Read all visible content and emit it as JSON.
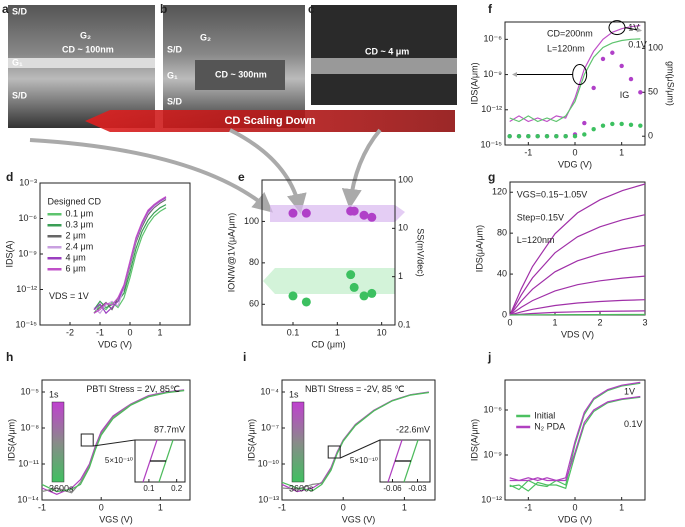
{
  "panel_labels": [
    "a",
    "b",
    "c",
    "d",
    "e",
    "f",
    "g",
    "h",
    "i",
    "j"
  ],
  "images": [
    {
      "texts": [
        "S/D",
        "G₂",
        "G₁",
        "CD ~ 100nm",
        "S/D"
      ]
    },
    {
      "texts": [
        "S/D",
        "G₂",
        "G₁",
        "CD ~ 300nm",
        "S/D"
      ]
    },
    {
      "texts": [
        "CD ~ 4 μm"
      ]
    }
  ],
  "banner": "CD Scaling Down",
  "chart_data": [
    {
      "type": "line",
      "xlabel": "VDG (V)",
      "ylabel": "IDS(A)",
      "ylog": true,
      "xlim": [
        -3,
        2
      ],
      "xticks": [
        -2,
        -1,
        0,
        1
      ],
      "ylim": [
        1e-15,
        0.001
      ],
      "yticks": [
        {
          "value": 1e-15,
          "label": "10⁻¹⁵"
        },
        {
          "value": 1e-12,
          "label": "10⁻¹²"
        },
        {
          "value": 1e-09,
          "label": "10⁻⁹"
        },
        {
          "value": 1e-06,
          "label": "10⁻⁶"
        },
        {
          "value": 0.001,
          "label": "10⁻³"
        }
      ],
      "legend_title": "Designed CD",
      "annotations": [
        "VDS = 1V"
      ],
      "x": [
        -1.2,
        -1,
        -0.8,
        -0.6,
        -0.4,
        -0.2,
        0,
        0.2,
        0.4,
        0.6,
        0.8,
        1.0,
        1.2
      ],
      "series": [
        {
          "name": "0.1 μm",
          "color": "#5ec46e",
          "values": [
            1e-14,
            5e-14,
            2e-14,
            8e-14,
            3e-14,
            2e-13,
            1e-11,
            1e-09,
            3e-08,
            3e-07,
            1.5e-06,
            4e-06,
            8e-06
          ]
        },
        {
          "name": "0.3 μm",
          "color": "#3a9e55",
          "values": [
            2e-14,
            1e-13,
            3e-14,
            5e-14,
            1e-13,
            5e-13,
            3e-11,
            3e-09,
            8e-08,
            7e-07,
            3e-06,
            8e-06,
            1.5e-05
          ]
        },
        {
          "name": "2 μm",
          "color": "#666666",
          "values": [
            1e-14,
            3e-14,
            8e-14,
            2e-14,
            2e-13,
            1e-12,
            1e-10,
            1e-08,
            2e-07,
            2e-06,
            8e-06,
            2e-05,
            4e-05
          ]
        },
        {
          "name": "2.4 μm",
          "color": "#c9a0e0",
          "values": [
            3e-14,
            1e-14,
            5e-14,
            1e-13,
            4e-14,
            1.5e-12,
            1.5e-10,
            1.5e-08,
            3e-07,
            3e-06,
            1e-05,
            2.5e-05,
            5e-05
          ]
        },
        {
          "name": "4 μm",
          "color": "#9b3fc0",
          "values": [
            2e-14,
            6e-14,
            1e-14,
            3e-14,
            1e-13,
            2e-12,
            2e-10,
            2e-08,
            4e-07,
            4e-06,
            1.3e-05,
            3e-05,
            6e-05
          ]
        },
        {
          "name": "6 μm",
          "color": "#c050c8",
          "values": [
            1e-14,
            2e-14,
            7e-14,
            5e-14,
            2e-13,
            2.5e-12,
            2.5e-10,
            2.5e-08,
            5e-07,
            5e-06,
            1.5e-05,
            3.5e-05,
            7e-05
          ]
        }
      ]
    },
    {
      "type": "scatter",
      "xlabel": "CD (μm)",
      "ylabel": "ION/W@1V(μA/μm)",
      "y2label": "SS(mV/dec)",
      "xlog": true,
      "y2log": true,
      "xlim": [
        0.02,
        20
      ],
      "xticks": [
        0.1,
        1,
        10
      ],
      "ylim": [
        50,
        120
      ],
      "yticks": [
        60,
        80,
        100
      ],
      "y2lim": [
        0.1,
        100
      ],
      "y2ticks": [
        0.1,
        1,
        10,
        100
      ],
      "x": [
        0.1,
        0.2,
        2,
        2.4,
        4,
        6
      ],
      "series": [
        {
          "color": "#b040c8",
          "values": [
            104,
            104,
            105,
            105,
            103,
            102
          ]
        },
        {
          "color": "#3cc060",
          "axis": "y2",
          "values": [
            0.4,
            0.3,
            1.1,
            0.6,
            0.4,
            0.45
          ]
        }
      ]
    },
    {
      "type": "line",
      "xlabel": "VDG (V)",
      "ylabel": "IDS(A/μm)",
      "y2label": "gm(μS/μm)",
      "ylog": true,
      "xlim": [
        -1.5,
        1.5
      ],
      "xticks": [
        -1,
        0,
        1
      ],
      "ylim": [
        1e-15,
        3e-05
      ],
      "yticks": [
        {
          "value": 1e-15,
          "label": "10⁻¹⁵"
        },
        {
          "value": 1e-12,
          "label": "10⁻¹²"
        },
        {
          "value": 1e-09,
          "label": "10⁻⁹"
        },
        {
          "value": 1e-06,
          "label": "10⁻⁶"
        }
      ],
      "y2lim": [
        -10,
        130
      ],
      "y2ticks": [
        0,
        50,
        100
      ],
      "annotations": [
        "CD=200nm",
        "L=120nm",
        "1V",
        "0.1V",
        "IG"
      ],
      "x": [
        -1.4,
        -1.2,
        -1,
        -0.8,
        -0.6,
        -0.4,
        -0.2,
        0,
        0.2,
        0.4,
        0.6,
        0.8,
        1,
        1.2,
        1.4
      ],
      "series": [
        {
          "color": "#c050c8",
          "values": [
            1e-13,
            3e-13,
            1e-13,
            2e-13,
            1e-13,
            3e-13,
            2e-13,
            1e-11,
            3e-09,
            1e-07,
            1e-06,
            4e-06,
            8e-06,
            1.2e-05,
            1.5e-05
          ]
        },
        {
          "color": "#5ec46e",
          "values": [
            2e-13,
            1e-13,
            3e-13,
            1e-13,
            2e-13,
            1e-13,
            3e-13,
            5e-12,
            1e-09,
            3e-08,
            2e-07,
            5e-07,
            8e-07,
            1e-06,
            1.1e-06
          ]
        },
        {
          "color": "#b040c8",
          "axis": "y2",
          "markers": true,
          "values": [
            0,
            0,
            0,
            0,
            0,
            0,
            0,
            2,
            15,
            55,
            88,
            95,
            80,
            65,
            50
          ]
        },
        {
          "color": "#3cc060",
          "axis": "y2",
          "markers": true,
          "values": [
            0,
            0,
            0,
            0,
            0,
            0,
            0,
            0,
            2,
            8,
            12,
            14,
            14,
            13,
            12
          ]
        }
      ]
    },
    {
      "type": "line",
      "xlabel": "VDS (V)",
      "ylabel": "IDS(μA/μm)",
      "xlim": [
        0,
        3
      ],
      "xticks": [
        0,
        1,
        2,
        3
      ],
      "ylim": [
        0,
        130
      ],
      "yticks": [
        0,
        40,
        80,
        120
      ],
      "annotations": [
        "VGS=0.15~1.05V",
        "Step=0.15V",
        "L=120nm"
      ],
      "x": [
        0,
        0.25,
        0.5,
        1,
        1.5,
        2,
        2.5,
        3
      ],
      "series": [
        {
          "color": "#a030a8",
          "values": [
            0,
            25.6,
            47.4,
            79.4,
            99.8,
            112.6,
            121.6,
            128
          ]
        },
        {
          "color": "#a030a8",
          "values": [
            0,
            19.6,
            36.3,
            60.8,
            76.4,
            86.2,
            93.1,
            98
          ]
        },
        {
          "color": "#a030a8",
          "values": [
            0,
            13.6,
            25.2,
            42.2,
            53,
            59.8,
            64.6,
            68
          ]
        },
        {
          "color": "#a030a8",
          "values": [
            0,
            7.6,
            14.1,
            23.6,
            29.6,
            33.4,
            36.1,
            38
          ]
        },
        {
          "color": "#a030a8",
          "values": [
            0,
            3,
            5.6,
            9.3,
            11.7,
            13.2,
            14.3,
            15
          ]
        },
        {
          "color": "#a030a8",
          "values": [
            0,
            0.8,
            1.5,
            2.5,
            3.1,
            3.5,
            3.8,
            4
          ]
        },
        {
          "color": "#4cbb5c",
          "values": [
            0,
            0.1,
            0.2,
            0.3,
            0.4,
            0.4,
            0.5,
            0.5
          ]
        }
      ]
    },
    {
      "type": "line",
      "xlabel": "VGS (V)",
      "ylabel": "IDS(A/μm)",
      "ylog": true,
      "xlim": [
        -1,
        1.5
      ],
      "xticks": [
        -1,
        0,
        1
      ],
      "ylim": [
        1e-14,
        0.0001
      ],
      "yticks": [
        {
          "value": 1e-14,
          "label": "10⁻¹⁴"
        },
        {
          "value": 1e-11,
          "label": "10⁻¹¹"
        },
        {
          "value": 1e-08,
          "label": "10⁻⁸"
        },
        {
          "value": 1e-05,
          "label": "10⁻⁵"
        }
      ],
      "annotations": [
        "PBTI Stress = 2V, 85℃"
      ],
      "colorbar": [
        "1s",
        "3600s"
      ],
      "inset": {
        "xlim": [
          0.05,
          0.23
        ],
        "xticks": [
          0.1,
          0.2
        ],
        "label": "87.7mV",
        "scale": "5×10⁻¹⁰"
      },
      "x": [
        -1,
        -0.75,
        -0.5,
        -0.35,
        -0.2,
        -0.1,
        0,
        0.2,
        0.5,
        0.8,
        1.1,
        1.4
      ],
      "series": [
        {
          "color": "#b040c0",
          "values": [
            1e-13,
            3e-14,
            1e-13,
            5e-13,
            1e-11,
            3e-10,
            5e-09,
            1e-07,
            1e-06,
            5e-06,
            1e-05,
            1.5e-05
          ]
        },
        {
          "color": "#888888",
          "values": [
            5e-14,
            1e-13,
            4e-14,
            3e-13,
            7e-12,
            2e-10,
            3.5e-09,
            8e-08,
            9e-07,
            4.5e-06,
            9e-06,
            1.4e-05
          ]
        },
        {
          "color": "#4cbb5c",
          "values": [
            2e-13,
            5e-14,
            8e-14,
            2e-13,
            5e-12,
            1.5e-10,
            2.5e-09,
            6e-08,
            8e-07,
            4e-06,
            8.5e-06,
            1.3e-05
          ]
        }
      ]
    },
    {
      "type": "line",
      "xlabel": "VGS (V)",
      "ylabel": "IDS(A/μm)",
      "ylog": true,
      "xlim": [
        -1,
        1.5
      ],
      "xticks": [
        -1,
        0,
        1
      ],
      "ylim": [
        1e-13,
        0.001
      ],
      "yticks": [
        {
          "value": 1e-13,
          "label": "10⁻¹³"
        },
        {
          "value": 1e-10,
          "label": "10⁻¹⁰"
        },
        {
          "value": 1e-07,
          "label": "10⁻⁷"
        },
        {
          "value": 0.0001,
          "label": "10⁻⁴"
        }
      ],
      "annotations": [
        "NBTI Stress = -2V, 85 ℃"
      ],
      "colorbar": [
        "1s",
        "3600s"
      ],
      "inset": {
        "xlim": [
          -0.075,
          -0.015
        ],
        "xticks": [
          -0.06,
          -0.03
        ],
        "label": "-22.6mV",
        "scale": "5×10⁻¹⁰"
      },
      "x": [
        -1,
        -0.75,
        -0.5,
        -0.35,
        -0.2,
        -0.1,
        0,
        0.2,
        0.5,
        0.8,
        1.1,
        1.4
      ],
      "series": [
        {
          "color": "#b040c0",
          "values": [
            2e-12,
            5e-13,
            1e-12,
            3e-12,
            5e-11,
            1e-09,
            1e-08,
            2e-07,
            3e-06,
            2e-05,
            6e-05,
            0.0001
          ]
        },
        {
          "color": "#888888",
          "values": [
            1e-12,
            8e-13,
            2e-12,
            2.5e-12,
            4e-11,
            8e-10,
            9e-09,
            1.8e-07,
            2.8e-06,
            1.9e-05,
            5.8e-05,
            9.5e-05
          ]
        },
        {
          "color": "#4cbb5c",
          "values": [
            3e-12,
            1e-12,
            6e-13,
            2e-12,
            3e-11,
            7e-10,
            8e-09,
            1.6e-07,
            2.6e-06,
            1.8e-05,
            5.5e-05,
            9e-05
          ]
        }
      ]
    },
    {
      "type": "line",
      "xlabel": "VDG (V)",
      "ylabel": "IDS(A/μm)",
      "ylog": true,
      "xlim": [
        -1.5,
        1.5
      ],
      "xticks": [
        -1,
        0,
        1
      ],
      "ylim": [
        1e-12,
        0.0001
      ],
      "yticks": [
        {
          "value": 1e-12,
          "label": "10⁻¹²"
        },
        {
          "value": 1e-09,
          "label": "10⁻⁹"
        },
        {
          "value": 1e-06,
          "label": "10⁻⁶"
        }
      ],
      "annotations": [
        "1V",
        "0.1V"
      ],
      "x": [
        -1.4,
        -1.2,
        -1,
        -0.8,
        -0.6,
        -0.4,
        -0.2,
        0,
        0.2,
        0.4,
        0.7,
        1,
        1.4
      ],
      "series": [
        {
          "name": "Initial",
          "color": "#4cc060",
          "values": [
            1e-11,
            5e-12,
            2e-11,
            1e-11,
            8e-12,
            2e-11,
            1e-11,
            5e-09,
            5e-07,
            5e-06,
            2e-05,
            4e-05,
            6e-05
          ]
        },
        {
          "name": "N₂ PDA",
          "color": "#b040c0",
          "values": [
            3e-11,
            2e-11,
            3e-11,
            2e-11,
            3e-11,
            2e-11,
            3e-11,
            8e-09,
            7e-07,
            6e-06,
            2.3e-05,
            4.5e-05,
            7e-05
          ]
        },
        {
          "color": "#4cc060",
          "values": [
            8e-12,
            1e-11,
            4e-12,
            1.5e-11,
            1e-11,
            1e-11,
            6e-12,
            1e-09,
            1e-07,
            8e-07,
            3e-06,
            5e-06,
            7e-06
          ]
        },
        {
          "color": "#b040c0",
          "values": [
            2e-11,
            2e-11,
            2e-11,
            3e-11,
            2e-11,
            2e-11,
            2e-11,
            1.5e-09,
            1.5e-07,
            1e-06,
            3.5e-06,
            5.5e-06,
            8e-06
          ]
        }
      ]
    }
  ]
}
